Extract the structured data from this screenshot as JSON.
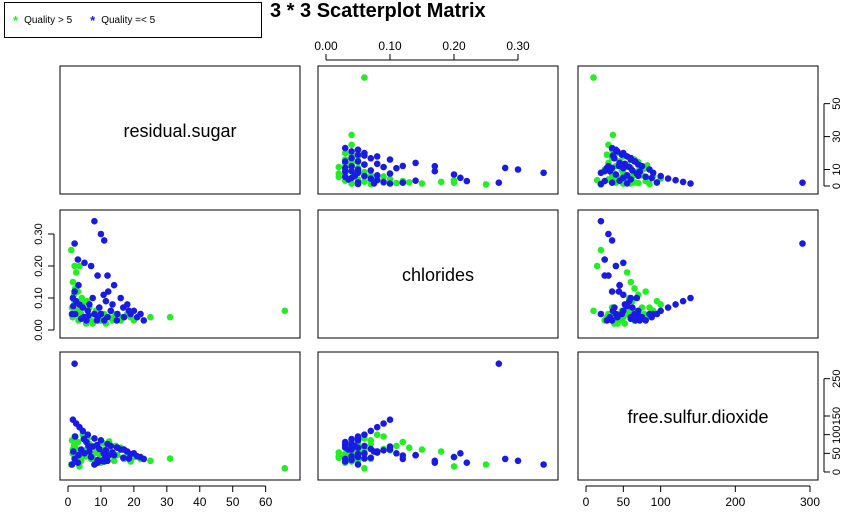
{
  "title": "3 * 3 Scatterplot Matrix",
  "legend": [
    {
      "label": "Quality > 5",
      "color": "#22ee22",
      "symbol": "*"
    },
    {
      "label": "Quality =< 5",
      "color": "#1a1ae6",
      "symbol": "*"
    }
  ],
  "colors": {
    "high": "#22ee22",
    "low": "#1a1ae6",
    "frame": "#000000"
  },
  "chart_data": {
    "type": "scatter",
    "title": "3 * 3 Scatterplot Matrix",
    "variables": [
      {
        "name": "residual.sugar",
        "range": [
          0,
          68
        ],
        "ticks": [
          0,
          10,
          20,
          30,
          40,
          50,
          60
        ],
        "right_ticks": [
          0,
          10,
          30,
          50
        ]
      },
      {
        "name": "chlorides",
        "range": [
          0,
          0.35
        ],
        "ticks": [
          "0.00",
          "0.10",
          "0.20",
          "0.30"
        ],
        "left_ticks": [
          "0.00",
          "0.10",
          "0.20",
          "0.30"
        ]
      },
      {
        "name": "free.sulfur.dioxide",
        "range": [
          0,
          300
        ],
        "ticks": [
          0,
          50,
          100,
          200,
          300
        ],
        "right_ticks": [
          0,
          50,
          100,
          150,
          250
        ]
      }
    ],
    "series": [
      {
        "name": "Quality > 5",
        "color": "#22ee22",
        "points": [
          [
            65.8,
            0.06,
            10
          ],
          [
            2,
            0.2,
            40
          ],
          [
            1.5,
            0.15,
            60
          ],
          [
            3,
            0.12,
            80
          ],
          [
            2.5,
            0.18,
            55
          ],
          [
            4,
            0.05,
            30
          ],
          [
            5,
            0.04,
            45
          ],
          [
            6,
            0.06,
            90
          ],
          [
            7,
            0.03,
            35
          ],
          [
            8,
            0.05,
            50
          ],
          [
            9,
            0.04,
            70
          ],
          [
            10,
            0.03,
            25
          ],
          [
            11,
            0.05,
            60
          ],
          [
            12,
            0.04,
            40
          ],
          [
            13,
            0.06,
            55
          ],
          [
            14,
            0.04,
            30
          ],
          [
            15,
            0.05,
            45
          ],
          [
            16,
            0.03,
            65
          ],
          [
            17,
            0.04,
            35
          ],
          [
            18,
            0.05,
            50
          ],
          [
            19,
            0.04,
            28
          ],
          [
            20,
            0.03,
            40
          ],
          [
            22,
            0.05,
            35
          ],
          [
            25,
            0.04,
            30
          ],
          [
            31,
            0.04,
            36
          ],
          [
            1,
            0.25,
            20
          ],
          [
            3.5,
            0.2,
            15
          ],
          [
            2,
            0.09,
            95
          ],
          [
            1.2,
            0.07,
            85
          ],
          [
            4.5,
            0.08,
            100
          ],
          [
            6.5,
            0.07,
            75
          ],
          [
            8.5,
            0.06,
            65
          ],
          [
            2.8,
            0.05,
            55
          ],
          [
            3.2,
            0.03,
            45
          ],
          [
            5.5,
            0.02,
            42
          ],
          [
            7.5,
            0.02,
            38
          ],
          [
            9.5,
            0.03,
            48
          ],
          [
            11.5,
            0.02,
            52
          ],
          [
            13.5,
            0.03,
            44
          ],
          [
            1.8,
            0.11,
            70
          ],
          [
            2.2,
            0.13,
            65
          ],
          [
            4.2,
            0.1,
            58
          ],
          [
            5.8,
            0.09,
            62
          ],
          [
            10.5,
            0.05,
            78
          ],
          [
            12.5,
            0.04,
            82
          ],
          [
            14.5,
            0.05,
            70
          ],
          [
            16.5,
            0.04,
            60
          ],
          [
            1.4,
            0.04,
            50
          ],
          [
            2.6,
            0.06,
            48
          ],
          [
            3.8,
            0.07,
            35
          ]
        ]
      },
      {
        "name": "Quality =< 5",
        "color": "#1a1ae6",
        "points": [
          [
            8,
            0.34,
            20
          ],
          [
            10,
            0.3,
            30
          ],
          [
            11,
            0.28,
            35
          ],
          [
            2,
            0.27,
            290
          ],
          [
            3,
            0.22,
            25
          ],
          [
            5,
            0.21,
            50
          ],
          [
            7,
            0.2,
            40
          ],
          [
            9,
            0.17,
            25
          ],
          [
            12,
            0.17,
            30
          ],
          [
            14,
            0.14,
            45
          ],
          [
            16,
            0.1,
            60
          ],
          [
            18,
            0.08,
            55
          ],
          [
            20,
            0.06,
            50
          ],
          [
            22,
            0.05,
            40
          ],
          [
            23,
            0.03,
            35
          ],
          [
            1.5,
            0.1,
            140
          ],
          [
            2.5,
            0.09,
            130
          ],
          [
            3.5,
            0.08,
            120
          ],
          [
            4.5,
            0.07,
            110
          ],
          [
            6,
            0.06,
            100
          ],
          [
            8,
            0.05,
            90
          ],
          [
            10,
            0.05,
            85
          ],
          [
            12,
            0.04,
            75
          ],
          [
            13,
            0.06,
            70
          ],
          [
            15,
            0.05,
            65
          ],
          [
            17,
            0.04,
            60
          ],
          [
            19,
            0.05,
            48
          ],
          [
            21,
            0.04,
            42
          ],
          [
            6.5,
            0.08,
            55
          ],
          [
            9.5,
            0.07,
            62
          ],
          [
            11.5,
            0.09,
            58
          ],
          [
            13.5,
            0.08,
            52
          ],
          [
            7.5,
            0.1,
            68
          ],
          [
            2.2,
            0.05,
            95
          ],
          [
            4.8,
            0.04,
            88
          ],
          [
            5.6,
            0.03,
            80
          ],
          [
            8.8,
            0.03,
            72
          ],
          [
            14.8,
            0.03,
            66
          ],
          [
            3.2,
            0.14,
            45
          ],
          [
            1.2,
            0.05,
            20
          ],
          [
            2,
            0.12,
            35
          ],
          [
            10.8,
            0.11,
            50
          ],
          [
            12.2,
            0.12,
            44
          ],
          [
            16.8,
            0.07,
            38
          ],
          [
            18.5,
            0.06,
            36
          ],
          [
            4,
            0.035,
            60
          ],
          [
            6.2,
            0.045,
            70
          ],
          [
            9,
            0.04,
            32
          ],
          [
            11,
            0.03,
            28
          ],
          [
            1.6,
            0.075,
            55
          ]
        ]
      }
    ],
    "grid": false,
    "legend_position": "top-left"
  }
}
